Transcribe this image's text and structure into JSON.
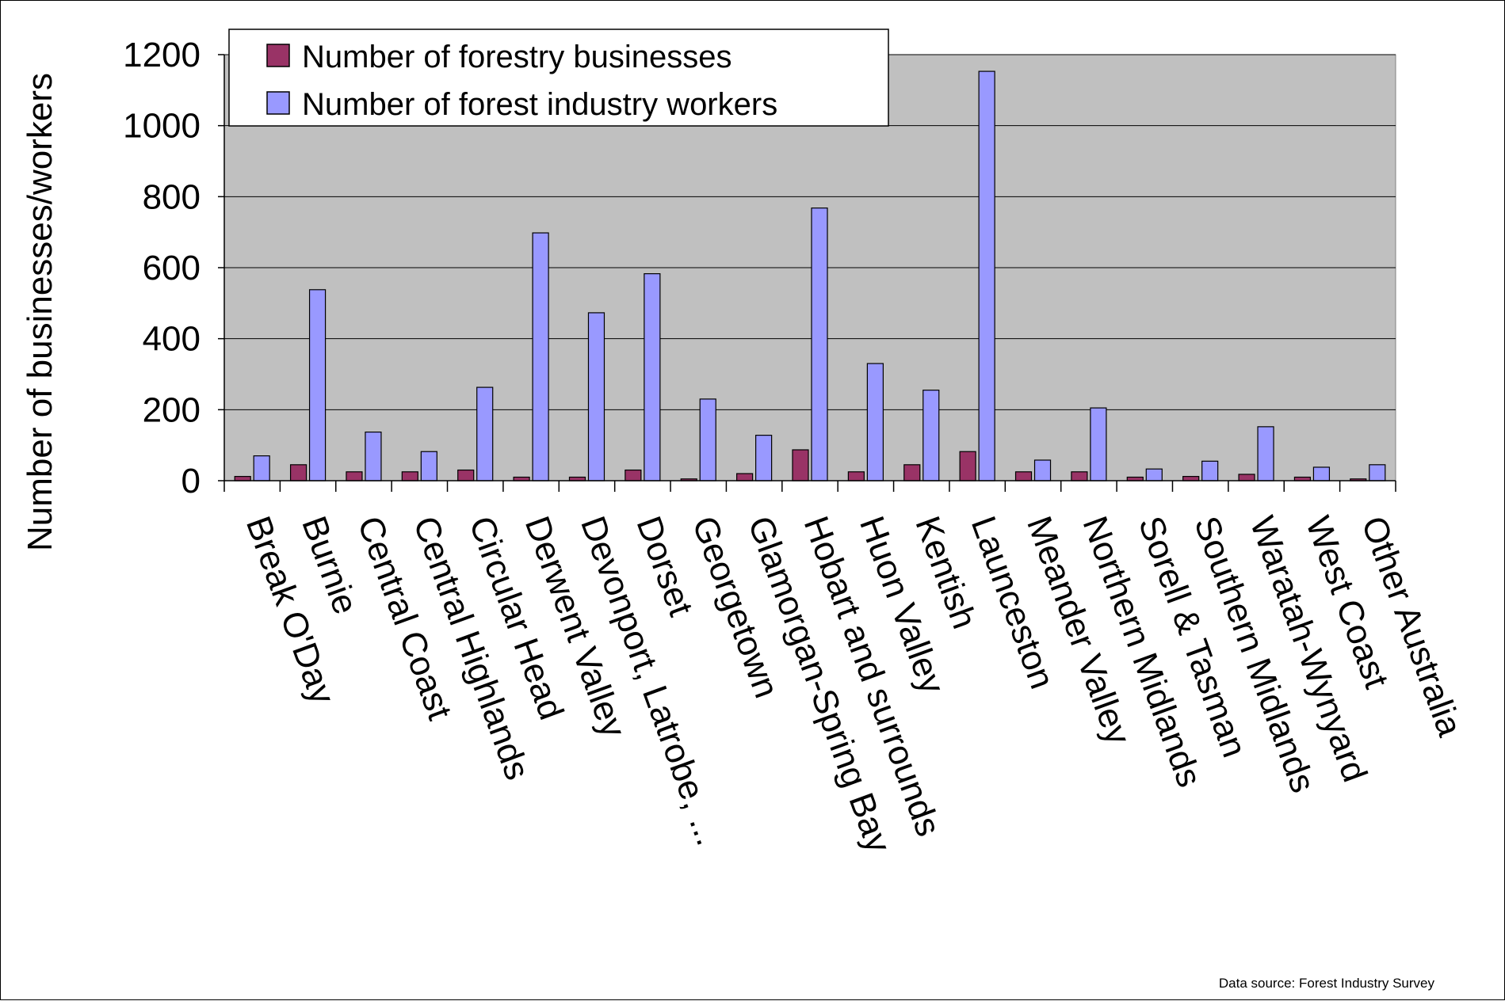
{
  "chart_data": {
    "type": "bar",
    "title": "",
    "xlabel": "",
    "ylabel": "Number of businesses/workers",
    "ylim": [
      0,
      1200
    ],
    "yticks": [
      "0",
      "200",
      "400",
      "600",
      "800",
      "1000",
      "1200"
    ],
    "grid": true,
    "legend_position": "top-left",
    "plot_background": "#c0c0c0",
    "categories": [
      "Break O'Day",
      "Burnie",
      "Central Coast",
      "Central Highlands",
      "Circular Head",
      "Derwent Valley",
      "Devonport, Latrobe, ...",
      "Dorset",
      "Georgetown",
      "Glamorgan-Spring Bay",
      "Hobart and surrounds",
      "Huon Valley",
      "Kentish",
      "Launceston",
      "Meander Valley",
      "Northern Midlands",
      "Sorell & Tasman",
      "Southern Midlands",
      "Waratah-Wynyard",
      "West Coast",
      "Other Australia"
    ],
    "series": [
      {
        "name": "Number of forestry businesses",
        "color": "#993366",
        "values": [
          12,
          45,
          25,
          25,
          30,
          10,
          10,
          30,
          5,
          20,
          87,
          25,
          45,
          82,
          25,
          25,
          10,
          12,
          18,
          10,
          5
        ]
      },
      {
        "name": "Number of forest industry workers",
        "color": "#9999ff",
        "values": [
          70,
          538,
          137,
          82,
          263,
          698,
          473,
          583,
          230,
          128,
          768,
          330,
          255,
          1153,
          58,
          205,
          33,
          55,
          152,
          38,
          45
        ]
      }
    ]
  },
  "footer": {
    "source": "Data source: Forest Industry Survey"
  }
}
